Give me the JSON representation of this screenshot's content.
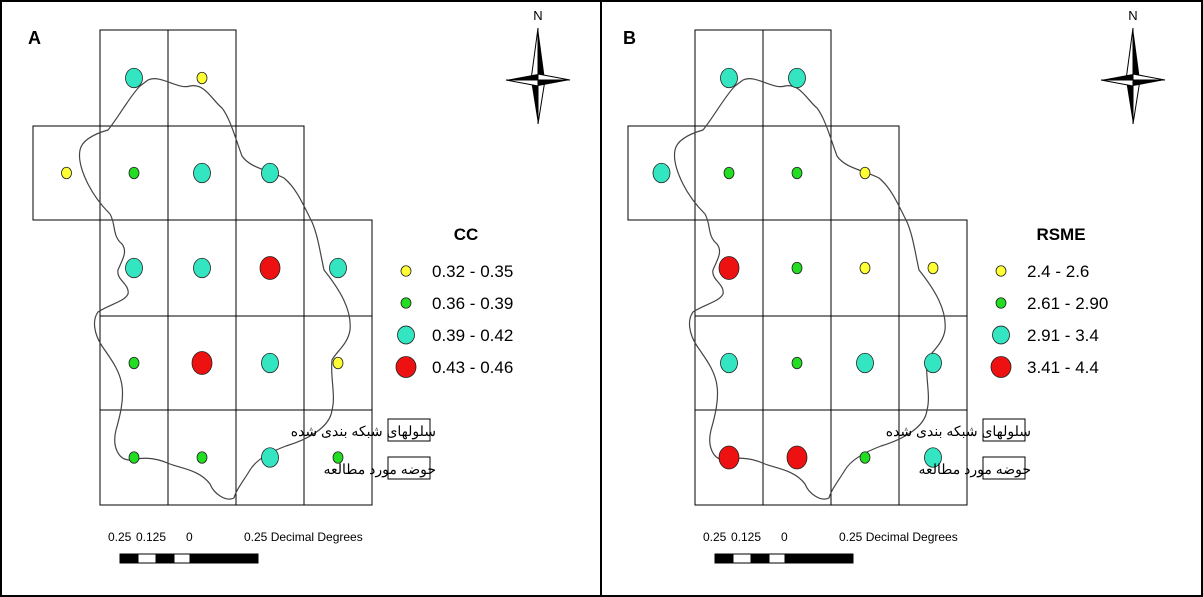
{
  "panels": [
    {
      "letter": "A",
      "north_label": "N",
      "legend_title": "CC",
      "legend_items": [
        {
          "label": "0.32 - 0.35",
          "color": "#ffff33",
          "size": "small"
        },
        {
          "label": "0.36 - 0.39",
          "color": "#22dd22",
          "size": "small"
        },
        {
          "label": "0.39 - 0.42",
          "color": "#33e5c0",
          "size": "medium"
        },
        {
          "label": "0.43 - 0.46",
          "color": "#ee1111",
          "size": "large"
        }
      ],
      "grid_label": "سلولهای شبکه بندی شده",
      "basin_label": "حوضه مورد مطالعه",
      "scale_labels": [
        "0.25",
        "0.125",
        "0",
        "0.25 Decimal Degrees"
      ],
      "points": [
        {
          "row": 0,
          "col": 1,
          "class": 2
        },
        {
          "row": 0,
          "col": 2,
          "class": 0
        },
        {
          "row": 1,
          "col": 0,
          "class": 0
        },
        {
          "row": 1,
          "col": 1,
          "class": 1
        },
        {
          "row": 1,
          "col": 2,
          "class": 2
        },
        {
          "row": 1,
          "col": 3,
          "class": 2
        },
        {
          "row": 2,
          "col": 1,
          "class": 2
        },
        {
          "row": 2,
          "col": 2,
          "class": 2
        },
        {
          "row": 2,
          "col": 3,
          "class": 3
        },
        {
          "row": 2,
          "col": 4,
          "class": 2
        },
        {
          "row": 3,
          "col": 1,
          "class": 1
        },
        {
          "row": 3,
          "col": 2,
          "class": 3
        },
        {
          "row": 3,
          "col": 3,
          "class": 2
        },
        {
          "row": 3,
          "col": 4,
          "class": 0
        },
        {
          "row": 4,
          "col": 1,
          "class": 1
        },
        {
          "row": 4,
          "col": 2,
          "class": 1
        },
        {
          "row": 4,
          "col": 3,
          "class": 2
        },
        {
          "row": 4,
          "col": 4,
          "class": 1
        }
      ]
    },
    {
      "letter": "B",
      "north_label": "N",
      "legend_title": "RSME",
      "legend_items": [
        {
          "label": "2.4 - 2.6",
          "color": "#ffff33",
          "size": "small"
        },
        {
          "label": "2.61 - 2.90",
          "color": "#22dd22",
          "size": "small"
        },
        {
          "label": "2.91 - 3.4",
          "color": "#33e5c0",
          "size": "medium"
        },
        {
          "label": "3.41 - 4.4",
          "color": "#ee1111",
          "size": "large"
        }
      ],
      "grid_label": "سلولهای شبکه بندی شده",
      "basin_label": "حوضه مورد مطالعه",
      "scale_labels": [
        "0.25",
        "0.125",
        "0",
        "0.25 Decimal Degrees"
      ],
      "points": [
        {
          "row": 0,
          "col": 1,
          "class": 2
        },
        {
          "row": 0,
          "col": 2,
          "class": 2
        },
        {
          "row": 1,
          "col": 0,
          "class": 2
        },
        {
          "row": 1,
          "col": 1,
          "class": 1
        },
        {
          "row": 1,
          "col": 2,
          "class": 1
        },
        {
          "row": 1,
          "col": 3,
          "class": 0
        },
        {
          "row": 2,
          "col": 1,
          "class": 3
        },
        {
          "row": 2,
          "col": 2,
          "class": 1
        },
        {
          "row": 2,
          "col": 3,
          "class": 0
        },
        {
          "row": 2,
          "col": 4,
          "class": 0
        },
        {
          "row": 3,
          "col": 1,
          "class": 2
        },
        {
          "row": 3,
          "col": 2,
          "class": 1
        },
        {
          "row": 3,
          "col": 3,
          "class": 2
        },
        {
          "row": 3,
          "col": 4,
          "class": 2
        },
        {
          "row": 4,
          "col": 1,
          "class": 3
        },
        {
          "row": 4,
          "col": 2,
          "class": 3
        },
        {
          "row": 4,
          "col": 3,
          "class": 1
        },
        {
          "row": 4,
          "col": 4,
          "class": 2
        }
      ]
    }
  ]
}
